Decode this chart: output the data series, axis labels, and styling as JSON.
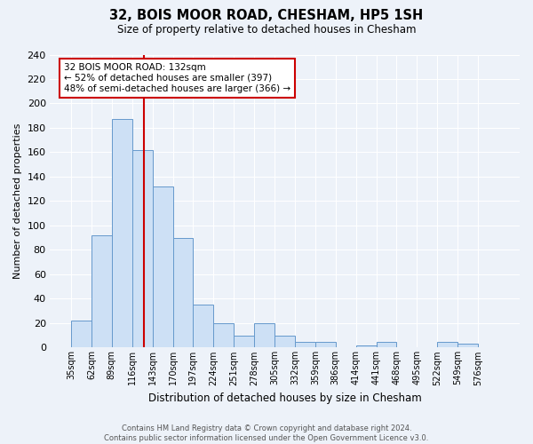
{
  "title": "32, BOIS MOOR ROAD, CHESHAM, HP5 1SH",
  "subtitle": "Size of property relative to detached houses in Chesham",
  "xlabel": "Distribution of detached houses by size in Chesham",
  "ylabel": "Number of detached properties",
  "bin_labels": [
    "35sqm",
    "62sqm",
    "89sqm",
    "116sqm",
    "143sqm",
    "170sqm",
    "197sqm",
    "224sqm",
    "251sqm",
    "278sqm",
    "305sqm",
    "332sqm",
    "359sqm",
    "386sqm",
    "414sqm",
    "441sqm",
    "468sqm",
    "495sqm",
    "522sqm",
    "549sqm",
    "576sqm"
  ],
  "bar_heights": [
    22,
    92,
    187,
    162,
    132,
    90,
    35,
    20,
    10,
    20,
    10,
    5,
    5,
    0,
    2,
    5,
    0,
    0,
    5,
    3,
    0
  ],
  "bar_color": "#cde0f5",
  "bar_edge_color": "#6699cc",
  "vline_color": "#cc0000",
  "annotation_title": "32 BOIS MOOR ROAD: 132sqm",
  "annotation_line1": "← 52% of detached houses are smaller (397)",
  "annotation_line2": "48% of semi-detached houses are larger (366) →",
  "annotation_box_edge": "#cc0000",
  "ylim": [
    0,
    240
  ],
  "yticks": [
    0,
    20,
    40,
    60,
    80,
    100,
    120,
    140,
    160,
    180,
    200,
    220,
    240
  ],
  "footer_line1": "Contains HM Land Registry data © Crown copyright and database right 2024.",
  "footer_line2": "Contains public sector information licensed under the Open Government Licence v3.0.",
  "bg_color": "#edf2f9",
  "plot_bg_color": "#edf2f9",
  "grid_color": "#ffffff"
}
